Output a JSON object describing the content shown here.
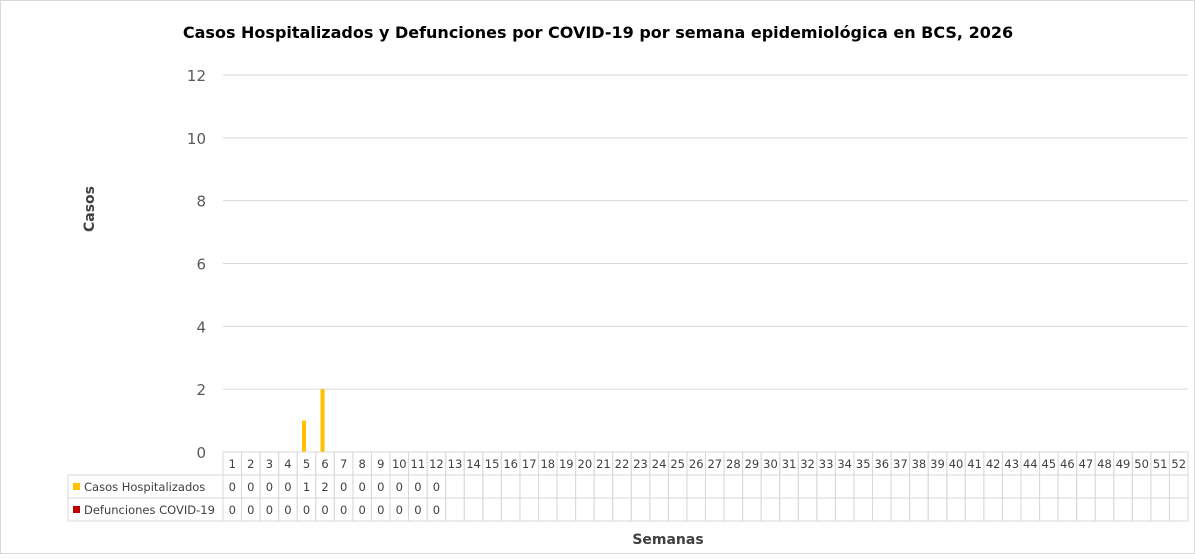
{
  "chart_data": {
    "type": "bar",
    "title": "Casos Hospitalizados y Defunciones por COVID-19 por semana epidemiológica en BCS, 2026",
    "xlabel": "Semanas",
    "ylabel": "Casos",
    "ylim": [
      0,
      12
    ],
    "yticks": [
      0,
      2,
      4,
      6,
      8,
      10,
      12
    ],
    "grid": true,
    "legend": "data-table",
    "categories": [
      "1",
      "2",
      "3",
      "4",
      "5",
      "6",
      "7",
      "8",
      "9",
      "10",
      "11",
      "12",
      "13",
      "14",
      "15",
      "16",
      "17",
      "18",
      "19",
      "20",
      "21",
      "22",
      "23",
      "24",
      "25",
      "26",
      "27",
      "28",
      "29",
      "30",
      "31",
      "32",
      "33",
      "34",
      "35",
      "36",
      "37",
      "38",
      "39",
      "40",
      "41",
      "42",
      "43",
      "44",
      "45",
      "46",
      "47",
      "48",
      "49",
      "50",
      "51",
      "52"
    ],
    "series": [
      {
        "name": "Casos Hospitalizados",
        "color": "#ffc000",
        "values": [
          0,
          0,
          0,
          0,
          1,
          2,
          0,
          0,
          0,
          0,
          0,
          0,
          null,
          null,
          null,
          null,
          null,
          null,
          null,
          null,
          null,
          null,
          null,
          null,
          null,
          null,
          null,
          null,
          null,
          null,
          null,
          null,
          null,
          null,
          null,
          null,
          null,
          null,
          null,
          null,
          null,
          null,
          null,
          null,
          null,
          null,
          null,
          null,
          null,
          null,
          null,
          null
        ]
      },
      {
        "name": "Defunciones COVID-19",
        "color": "#c00000",
        "values": [
          0,
          0,
          0,
          0,
          0,
          0,
          0,
          0,
          0,
          0,
          0,
          0,
          null,
          null,
          null,
          null,
          null,
          null,
          null,
          null,
          null,
          null,
          null,
          null,
          null,
          null,
          null,
          null,
          null,
          null,
          null,
          null,
          null,
          null,
          null,
          null,
          null,
          null,
          null,
          null,
          null,
          null,
          null,
          null,
          null,
          null,
          null,
          null,
          null,
          null,
          null,
          null
        ]
      }
    ]
  }
}
